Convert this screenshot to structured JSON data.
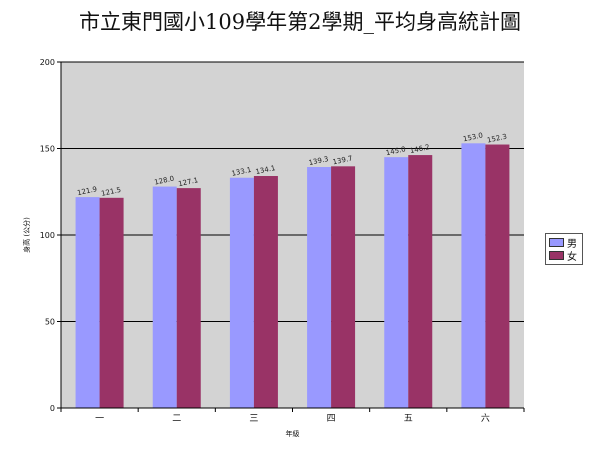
{
  "title": "市立東門國小109學年第2學期_平均身高統計圖",
  "chart_data": {
    "type": "bar",
    "categories": [
      "一",
      "二",
      "三",
      "四",
      "五",
      "六"
    ],
    "series": [
      {
        "name": "男",
        "color": "#9999ff",
        "values": [
          121.9,
          128.0,
          133.1,
          139.3,
          145.0,
          153.0
        ],
        "labels": [
          "121.9",
          "128.0",
          "133.1",
          "139.3",
          "145.0",
          "153.0"
        ]
      },
      {
        "name": "女",
        "color": "#993366",
        "values": [
          121.5,
          127.1,
          134.1,
          139.7,
          146.2,
          152.3
        ],
        "labels": [
          "121.5",
          "127.1",
          "134.1",
          "139.7",
          "146.2",
          "152.3"
        ]
      }
    ],
    "xlabel": "年級",
    "ylabel": "身高 (公分)",
    "ylim": [
      0,
      200
    ],
    "yticks": [
      0,
      50,
      100,
      150,
      200
    ],
    "grid": true,
    "plot_background": "#d3d3d3",
    "legend": "right"
  }
}
